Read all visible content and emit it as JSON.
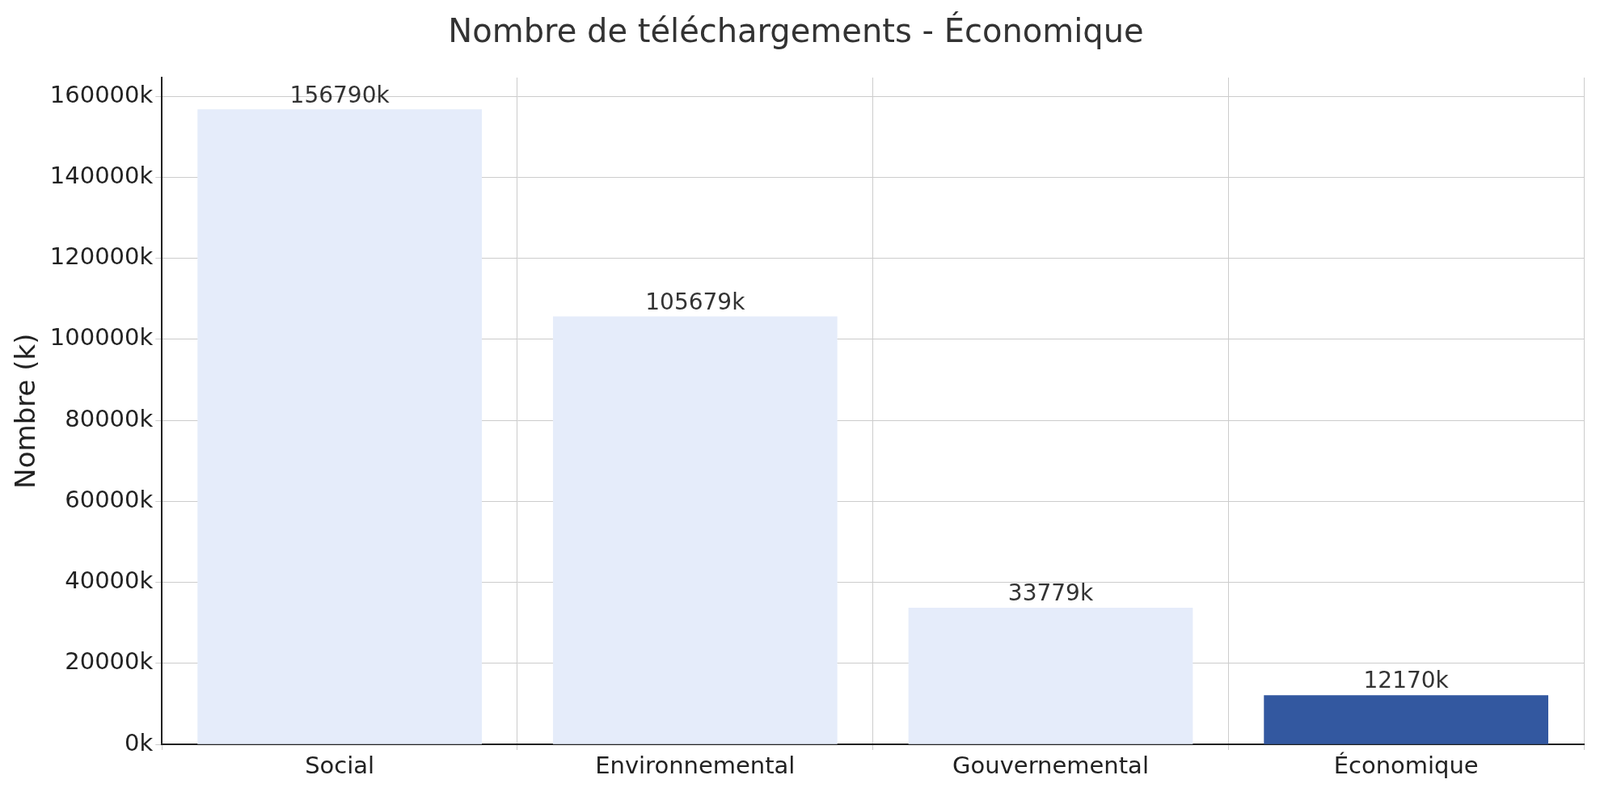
{
  "chart_data": {
    "type": "bar",
    "title": "Nombre de téléchargements - Économique",
    "y_label": "Nombre (k)",
    "categories": [
      "Social",
      "Environnemental",
      "Gouvernemental",
      "Économique"
    ],
    "values": [
      156790,
      105679,
      33779,
      12170
    ],
    "value_labels": [
      "156790k",
      "105679k",
      "33779k",
      "12170k"
    ],
    "colors": [
      "#e5ecfa",
      "#e5ecfa",
      "#e5ecfa",
      "#3358a0"
    ],
    "ylim": [
      0,
      164630
    ],
    "yticks": [
      {
        "value": 0,
        "label": "0k"
      },
      {
        "value": 20000,
        "label": "20000k"
      },
      {
        "value": 40000,
        "label": "40000k"
      },
      {
        "value": 60000,
        "label": "60000k"
      },
      {
        "value": 80000,
        "label": "80000k"
      },
      {
        "value": 100000,
        "label": "100000k"
      },
      {
        "value": 120000,
        "label": "120000k"
      },
      {
        "value": 140000,
        "label": "140000k"
      },
      {
        "value": 160000,
        "label": "160000k"
      }
    ],
    "grid": true,
    "data_labels": true
  }
}
